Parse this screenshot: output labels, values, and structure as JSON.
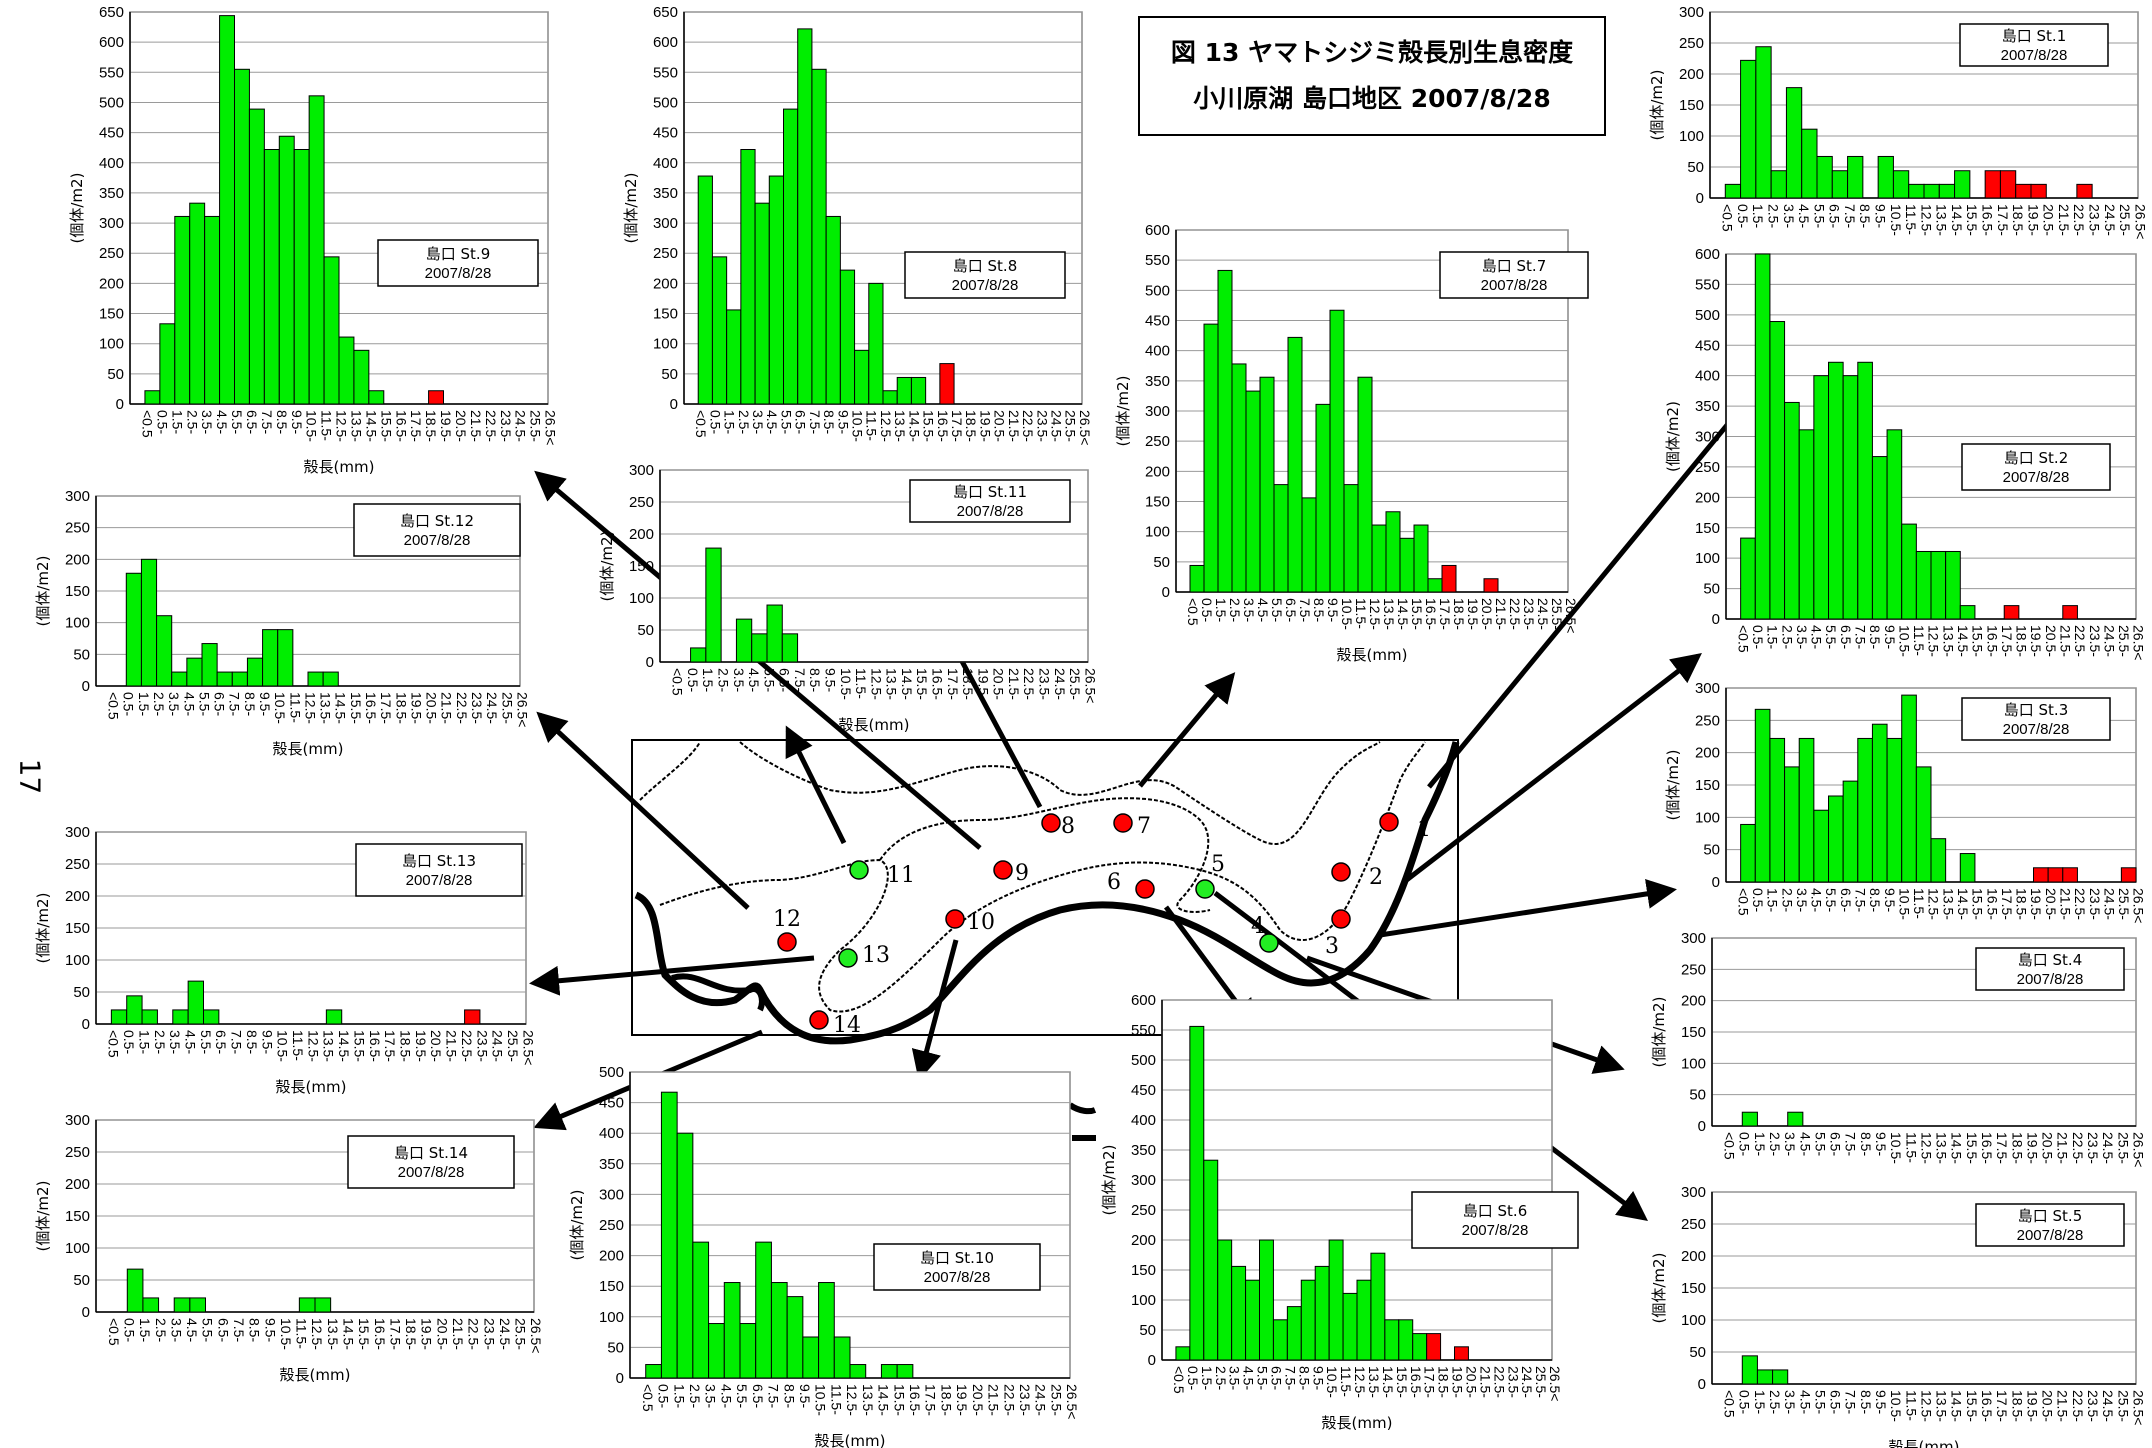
{
  "page_number": "17",
  "figure_title": {
    "line1": "図 13  ヤマトシジミ殻長別生息密度",
    "line2": "小川原湖  島口地区  2007/8/28"
  },
  "colors": {
    "normal": "#00ee00",
    "large": "#ff0000",
    "station_red": "#ff0000",
    "station_green": "#22ee22"
  },
  "map_stations": [
    {
      "label": "1",
      "color": "red"
    },
    {
      "label": "2",
      "color": "red"
    },
    {
      "label": "3",
      "color": "red"
    },
    {
      "label": "4",
      "color": "green"
    },
    {
      "label": "5",
      "color": "green"
    },
    {
      "label": "6",
      "color": "red"
    },
    {
      "label": "7",
      "color": "red"
    },
    {
      "label": "8",
      "color": "red"
    },
    {
      "label": "9",
      "color": "red"
    },
    {
      "label": "10",
      "color": "red"
    },
    {
      "label": "11",
      "color": "green"
    },
    {
      "label": "12",
      "color": "red"
    },
    {
      "label": "13",
      "color": "green"
    },
    {
      "label": "14",
      "color": "red"
    }
  ],
  "chart_data": [
    {
      "type": "bar",
      "station": "St.9",
      "legend_line1": "島口  St.9",
      "legend_line2": "2007/8/28",
      "ylim": [
        0,
        650
      ],
      "ystep": 50,
      "xlabel": "殻長(mm)",
      "ylabel": "(個体/m2)",
      "categories": [
        "<0.5",
        "0.5-",
        "1.5-",
        "2.5-",
        "3.5-",
        "4.5-",
        "5.5-",
        "6.5-",
        "7.5-",
        "8.5-",
        "9.5-",
        "10.5-",
        "11.5-",
        "12.5-",
        "13.5-",
        "14.5-",
        "15.5-",
        "16.5-",
        "17.5-",
        "18.5-",
        "19.5-",
        "20.5-",
        "21.5-",
        "22.5-",
        "23.5-",
        "24.5-",
        "25.5-",
        "26.5<"
      ],
      "values": [
        0,
        22,
        133,
        311,
        333,
        311,
        644,
        555,
        489,
        422,
        444,
        422,
        511,
        244,
        111,
        89,
        22,
        0,
        0,
        0,
        22,
        0,
        0,
        0,
        0,
        0,
        0,
        0
      ],
      "red_from": 19
    },
    {
      "type": "bar",
      "station": "St.8",
      "legend_line1": "島口  St.8",
      "legend_line2": "2007/8/28",
      "ylim": [
        0,
        650
      ],
      "ystep": 50,
      "xlabel": "",
      "ylabel": "(個体/m2)",
      "categories": [
        "<0.5",
        "0.5-",
        "1.5-",
        "2.5-",
        "3.5-",
        "4.5-",
        "5.5-",
        "6.5-",
        "7.5-",
        "8.5-",
        "9.5-",
        "10.5-",
        "11.5-",
        "12.5-",
        "13.5-",
        "14.5-",
        "15.5-",
        "16.5-",
        "17.5-",
        "18.5-",
        "19.5-",
        "20.5-",
        "21.5-",
        "22.5-",
        "23.5-",
        "24.5-",
        "25.5-",
        "26.5<"
      ],
      "values": [
        0,
        378,
        244,
        156,
        422,
        333,
        378,
        489,
        622,
        555,
        311,
        222,
        89,
        200,
        22,
        44,
        44,
        0,
        67,
        0,
        0,
        0,
        0,
        0,
        0,
        0,
        0,
        0
      ],
      "red_from": 18
    },
    {
      "type": "bar",
      "station": "St.7",
      "legend_line1": "島口  St.7",
      "legend_line2": "2007/8/28",
      "ylim": [
        0,
        600
      ],
      "ystep": 50,
      "xlabel": "殻長(mm)",
      "ylabel": "(個体/m2)",
      "categories": [
        "<0.5",
        "0.5-",
        "1.5-",
        "2.5-",
        "3.5-",
        "4.5-",
        "5.5-",
        "6.5-",
        "7.5-",
        "8.5-",
        "9.5-",
        "10.5-",
        "11.5-",
        "12.5-",
        "13.5-",
        "14.5-",
        "15.5-",
        "16.5-",
        "17.5-",
        "18.5-",
        "19.5-",
        "20.5-",
        "21.5-",
        "22.5-",
        "23.5-",
        "24.5-",
        "25.5-",
        "26.5<"
      ],
      "values": [
        0,
        44,
        444,
        533,
        378,
        333,
        356,
        178,
        422,
        156,
        311,
        467,
        178,
        356,
        111,
        133,
        89,
        111,
        22,
        44,
        0,
        0,
        22,
        0,
        0,
        0,
        0,
        0
      ],
      "red_from": 19
    },
    {
      "type": "bar",
      "station": "St.1",
      "legend_line1": "島口  St.1",
      "legend_line2": "2007/8/28",
      "ylim": [
        0,
        300
      ],
      "ystep": 50,
      "xlabel": "",
      "ylabel": "(個体/m2)",
      "categories": [
        "<0.5",
        "0.5-",
        "1.5-",
        "2.5-",
        "3.5-",
        "4.5-",
        "5.5-",
        "6.5-",
        "7.5-",
        "8.5-",
        "9.5-",
        "10.5-",
        "11.5-",
        "12.5-",
        "13.5-",
        "14.5-",
        "15.5-",
        "16.5-",
        "17.5-",
        "18.5-",
        "19.5-",
        "20.5-",
        "21.5-",
        "22.5-",
        "23.5-",
        "24.5-",
        "25.5-",
        "26.5<"
      ],
      "values": [
        0,
        22,
        222,
        244,
        44,
        178,
        111,
        67,
        44,
        67,
        0,
        67,
        44,
        22,
        22,
        22,
        44,
        0,
        44,
        44,
        22,
        22,
        0,
        0,
        22,
        0,
        0,
        0
      ],
      "red_from": 18
    },
    {
      "type": "bar",
      "station": "St.2",
      "legend_line1": "島口  St.2",
      "legend_line2": "2007/8/28",
      "ylim": [
        0,
        600
      ],
      "ystep": 50,
      "xlabel": "",
      "ylabel": "(個体/m2)",
      "categories": [
        "<0.5",
        "0.5-",
        "1.5-",
        "2.5-",
        "3.5-",
        "4.5-",
        "5.5-",
        "6.5-",
        "7.5-",
        "8.5-",
        "9.5-",
        "10.5-",
        "11.5-",
        "12.5-",
        "13.5-",
        "14.5-",
        "15.5-",
        "16.5-",
        "17.5-",
        "18.5-",
        "19.5-",
        "20.5-",
        "21.5-",
        "22.5-",
        "23.5-",
        "24.5-",
        "25.5-",
        "26.5<"
      ],
      "values": [
        0,
        133,
        600,
        489,
        356,
        311,
        400,
        422,
        400,
        422,
        267,
        311,
        156,
        111,
        111,
        111,
        22,
        0,
        0,
        22,
        0,
        0,
        0,
        22,
        0,
        0,
        0,
        0
      ],
      "red_from": 19
    },
    {
      "type": "bar",
      "station": "St.3",
      "legend_line1": "島口  St.3",
      "legend_line2": "2007/8/28",
      "ylim": [
        0,
        300
      ],
      "ystep": 50,
      "xlabel": "",
      "ylabel": "(個体/m2)",
      "categories": [
        "<0.5",
        "0.5-",
        "1.5-",
        "2.5-",
        "3.5-",
        "4.5-",
        "5.5-",
        "6.5-",
        "7.5-",
        "8.5-",
        "9.5-",
        "10.5-",
        "11.5-",
        "12.5-",
        "13.5-",
        "14.5-",
        "15.5-",
        "16.5-",
        "17.5-",
        "18.5-",
        "19.5-",
        "20.5-",
        "21.5-",
        "22.5-",
        "23.5-",
        "24.5-",
        "25.5-",
        "26.5<"
      ],
      "values": [
        0,
        89,
        267,
        222,
        178,
        222,
        111,
        133,
        156,
        222,
        244,
        222,
        289,
        178,
        67,
        0,
        44,
        0,
        0,
        0,
        0,
        22,
        22,
        22,
        0,
        0,
        0,
        22
      ],
      "red_from": 19
    },
    {
      "type": "bar",
      "station": "St.4",
      "legend_line1": "島口  St.4",
      "legend_line2": "2007/8/28",
      "ylim": [
        0,
        300
      ],
      "ystep": 50,
      "xlabel": "",
      "ylabel": "(個体/m2)",
      "categories": [
        "<0.5",
        "0.5-",
        "1.5-",
        "2.5-",
        "3.5-",
        "4.5-",
        "5.5-",
        "6.5-",
        "7.5-",
        "8.5-",
        "9.5-",
        "10.5-",
        "11.5-",
        "12.5-",
        "13.5-",
        "14.5-",
        "15.5-",
        "16.5-",
        "17.5-",
        "18.5-",
        "19.5-",
        "20.5-",
        "21.5-",
        "22.5-",
        "23.5-",
        "24.5-",
        "25.5-",
        "26.5<"
      ],
      "values": [
        0,
        0,
        22,
        0,
        0,
        22,
        0,
        0,
        0,
        0,
        0,
        0,
        0,
        0,
        0,
        0,
        0,
        0,
        0,
        0,
        0,
        0,
        0,
        0,
        0,
        0,
        0,
        0
      ],
      "red_from": 19
    },
    {
      "type": "bar",
      "station": "St.5",
      "legend_line1": "島口  St.5",
      "legend_line2": "2007/8/28",
      "ylim": [
        0,
        300
      ],
      "ystep": 50,
      "xlabel": "殻長(mm)",
      "ylabel": "(個体/m2)",
      "categories": [
        "<0.5",
        "0.5-",
        "1.5-",
        "2.5-",
        "3.5-",
        "4.5-",
        "5.5-",
        "6.5-",
        "7.5-",
        "8.5-",
        "9.5-",
        "10.5-",
        "11.5-",
        "12.5-",
        "13.5-",
        "14.5-",
        "15.5-",
        "16.5-",
        "17.5-",
        "18.5-",
        "19.5-",
        "20.5-",
        "21.5-",
        "22.5-",
        "23.5-",
        "24.5-",
        "25.5-",
        "26.5<"
      ],
      "values": [
        0,
        0,
        44,
        22,
        22,
        0,
        0,
        0,
        0,
        0,
        0,
        0,
        0,
        0,
        0,
        0,
        0,
        0,
        0,
        0,
        0,
        0,
        0,
        0,
        0,
        0,
        0,
        0
      ],
      "red_from": 19
    },
    {
      "type": "bar",
      "station": "St.6",
      "legend_line1": "島口  St.6",
      "legend_line2": "2007/8/28",
      "ylim": [
        0,
        600
      ],
      "ystep": 50,
      "xlabel": "殻長(mm)",
      "ylabel": "(個体/m2)",
      "categories": [
        "<0.5",
        "0.5-",
        "1.5-",
        "2.5-",
        "3.5-",
        "4.5-",
        "5.5-",
        "6.5-",
        "7.5-",
        "8.5-",
        "9.5-",
        "10.5-",
        "11.5-",
        "12.5-",
        "13.5-",
        "14.5-",
        "15.5-",
        "16.5-",
        "17.5-",
        "18.5-",
        "19.5-",
        "20.5-",
        "21.5-",
        "22.5-",
        "23.5-",
        "24.5-",
        "25.5-",
        "26.5<"
      ],
      "values": [
        0,
        22,
        556,
        333,
        200,
        156,
        133,
        200,
        67,
        89,
        133,
        156,
        200,
        111,
        133,
        178,
        67,
        67,
        44,
        44,
        0,
        22,
        0,
        0,
        0,
        0,
        0,
        0
      ],
      "red_from": 19
    },
    {
      "type": "bar",
      "station": "St.10",
      "legend_line1": "島口  St.10",
      "legend_line2": "2007/8/28",
      "ylim": [
        0,
        500
      ],
      "ystep": 50,
      "xlabel": "殻長(mm)",
      "ylabel": "(個体/m2)",
      "categories": [
        "<0.5",
        "0.5-",
        "1.5-",
        "2.5-",
        "3.5-",
        "4.5-",
        "5.5-",
        "6.5-",
        "7.5-",
        "8.5-",
        "9.5-",
        "10.5-",
        "11.5-",
        "12.5-",
        "13.5-",
        "14.5-",
        "15.5-",
        "16.5-",
        "17.5-",
        "18.5-",
        "19.5-",
        "20.5-",
        "21.5-",
        "22.5-",
        "23.5-",
        "24.5-",
        "25.5-",
        "26.5<"
      ],
      "values": [
        0,
        22,
        467,
        400,
        222,
        89,
        156,
        89,
        222,
        156,
        133,
        67,
        156,
        67,
        22,
        0,
        22,
        22,
        0,
        0,
        0,
        0,
        0,
        0,
        0,
        0,
        0,
        0
      ],
      "red_from": 19
    },
    {
      "type": "bar",
      "station": "St.11",
      "legend_line1": "島口  St.11",
      "legend_line2": "2007/8/28",
      "ylim": [
        0,
        300
      ],
      "ystep": 50,
      "xlabel": "殻長(mm)",
      "ylabel": "(個体/m2)",
      "categories": [
        "<0.5",
        "0.5-",
        "1.5-",
        "2.5-",
        "3.5-",
        "4.5-",
        "5.5-",
        "6.5-",
        "7.5-",
        "8.5-",
        "9.5-",
        "10.5-",
        "11.5-",
        "12.5-",
        "13.5-",
        "14.5-",
        "15.5-",
        "16.5-",
        "17.5-",
        "18.5-",
        "19.5-",
        "20.5-",
        "21.5-",
        "22.5-",
        "23.5-",
        "24.5-",
        "25.5-",
        "26.5<"
      ],
      "values": [
        0,
        0,
        22,
        178,
        0,
        67,
        44,
        89,
        44,
        0,
        0,
        0,
        0,
        0,
        0,
        0,
        0,
        0,
        0,
        0,
        0,
        0,
        0,
        0,
        0,
        0,
        0,
        0
      ],
      "red_from": 19
    },
    {
      "type": "bar",
      "station": "St.12",
      "legend_line1": "島口  St.12",
      "legend_line2": "2007/8/28",
      "ylim": [
        0,
        300
      ],
      "ystep": 50,
      "xlabel": "殻長(mm)",
      "ylabel": "(個体/m2)",
      "categories": [
        "<0.5",
        "0.5-",
        "1.5-",
        "2.5-",
        "3.5-",
        "4.5-",
        "5.5-",
        "6.5-",
        "7.5-",
        "8.5-",
        "9.5-",
        "10.5-",
        "11.5-",
        "12.5-",
        "13.5-",
        "14.5-",
        "15.5-",
        "16.5-",
        "17.5-",
        "18.5-",
        "19.5-",
        "20.5-",
        "21.5-",
        "22.5-",
        "23.5-",
        "24.5-",
        "25.5-",
        "26.5<"
      ],
      "values": [
        0,
        0,
        178,
        200,
        111,
        22,
        44,
        67,
        22,
        22,
        44,
        89,
        89,
        0,
        22,
        22,
        0,
        0,
        0,
        0,
        0,
        0,
        0,
        0,
        0,
        0,
        0,
        0
      ],
      "red_from": 19
    },
    {
      "type": "bar",
      "station": "St.13",
      "legend_line1": "島口  St.13",
      "legend_line2": "2007/8/28",
      "ylim": [
        0,
        300
      ],
      "ystep": 50,
      "xlabel": "殻長(mm)",
      "ylabel": "(個体/m2)",
      "categories": [
        "<0.5",
        "0.5-",
        "1.5-",
        "2.5-",
        "3.5-",
        "4.5-",
        "5.5-",
        "6.5-",
        "7.5-",
        "8.5-",
        "9.5-",
        "10.5-",
        "11.5-",
        "12.5-",
        "13.5-",
        "14.5-",
        "15.5-",
        "16.5-",
        "17.5-",
        "18.5-",
        "19.5-",
        "20.5-",
        "21.5-",
        "22.5-",
        "23.5-",
        "24.5-",
        "25.5-",
        "26.5<"
      ],
      "values": [
        0,
        22,
        44,
        22,
        0,
        22,
        67,
        22,
        0,
        0,
        0,
        0,
        0,
        0,
        0,
        22,
        0,
        0,
        0,
        0,
        0,
        0,
        0,
        0,
        22,
        0,
        0,
        0
      ],
      "red_from": 19
    },
    {
      "type": "bar",
      "station": "St.14",
      "legend_line1": "島口  St.14",
      "legend_line2": "2007/8/28",
      "ylim": [
        0,
        300
      ],
      "ystep": 50,
      "xlabel": "殻長(mm)",
      "ylabel": "(個体/m2)",
      "categories": [
        "<0.5",
        "0.5-",
        "1.5-",
        "2.5-",
        "3.5-",
        "4.5-",
        "5.5-",
        "6.5-",
        "7.5-",
        "8.5-",
        "9.5-",
        "10.5-",
        "11.5-",
        "12.5-",
        "13.5-",
        "14.5-",
        "15.5-",
        "16.5-",
        "17.5-",
        "18.5-",
        "19.5-",
        "20.5-",
        "21.5-",
        "22.5-",
        "23.5-",
        "24.5-",
        "25.5-",
        "26.5<"
      ],
      "values": [
        0,
        0,
        67,
        22,
        0,
        22,
        22,
        0,
        0,
        0,
        0,
        0,
        0,
        22,
        22,
        0,
        0,
        0,
        0,
        0,
        0,
        0,
        0,
        0,
        0,
        0,
        0,
        0
      ],
      "red_from": 19
    }
  ]
}
